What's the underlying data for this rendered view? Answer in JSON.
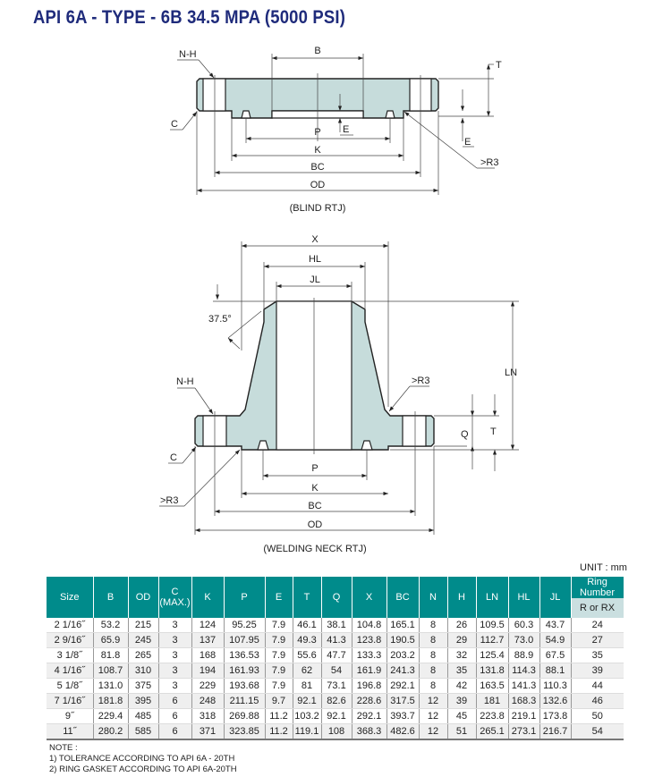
{
  "title": "API 6A - TYPE - 6B 34.5 MPA (5000 PSI)",
  "blind": {
    "caption": "(BLIND RTJ)",
    "labels": {
      "B": "B",
      "NH": "N-H",
      "C": "C",
      "T": "T",
      "E1": "E",
      "E2": "E",
      "P": "P",
      "K": "K",
      "BC": "BC",
      "OD": "OD",
      "R3": ">R3"
    }
  },
  "welding": {
    "caption": "(WELDING NECK RTJ)",
    "labels": {
      "X": "X",
      "HL": "HL",
      "JL": "JL",
      "angle": "37.5°",
      "NH": "N-H",
      "R3a": ">R3",
      "R3b": ">R3",
      "C": "C",
      "LN": "LN",
      "Q": "Q",
      "T": "T",
      "P": "P",
      "K": "K",
      "BC": "BC",
      "OD": "OD"
    }
  },
  "unit": "UNIT : mm",
  "table": {
    "headers": [
      "Size",
      "B",
      "OD",
      "C",
      "K",
      "P",
      "E",
      "T",
      "Q",
      "X",
      "BC",
      "N",
      "H",
      "LN",
      "HL",
      "JL"
    ],
    "c_sub": "(MAX.)",
    "ring_header": "Ring Number",
    "ring_sub": "R or RX",
    "rows": [
      [
        "2 1/16˝",
        "53.2",
        "215",
        "3",
        "124",
        "95.25",
        "7.9",
        "46.1",
        "38.1",
        "104.8",
        "165.1",
        "8",
        "26",
        "109.5",
        "60.3",
        "43.7",
        "24"
      ],
      [
        "2 9/16˝",
        "65.9",
        "245",
        "3",
        "137",
        "107.95",
        "7.9",
        "49.3",
        "41.3",
        "123.8",
        "190.5",
        "8",
        "29",
        "112.7",
        "73.0",
        "54.9",
        "27"
      ],
      [
        "3 1/8˝",
        "81.8",
        "265",
        "3",
        "168",
        "136.53",
        "7.9",
        "55.6",
        "47.7",
        "133.3",
        "203.2",
        "8",
        "32",
        "125.4",
        "88.9",
        "67.5",
        "35"
      ],
      [
        "4 1/16˝",
        "108.7",
        "310",
        "3",
        "194",
        "161.93",
        "7.9",
        "62",
        "54",
        "161.9",
        "241.3",
        "8",
        "35",
        "131.8",
        "114.3",
        "88.1",
        "39"
      ],
      [
        "5 1/8˝",
        "131.0",
        "375",
        "3",
        "229",
        "193.68",
        "7.9",
        "81",
        "73.1",
        "196.8",
        "292.1",
        "8",
        "42",
        "163.5",
        "141.3",
        "110.3",
        "44"
      ],
      [
        "7 1/16˝",
        "181.8",
        "395",
        "6",
        "248",
        "211.15",
        "9.7",
        "92.1",
        "82.6",
        "228.6",
        "317.5",
        "12",
        "39",
        "181",
        "168.3",
        "132.6",
        "46"
      ],
      [
        "9˝",
        "229.4",
        "485",
        "6",
        "318",
        "269.88",
        "11.2",
        "103.2",
        "92.1",
        "292.1",
        "393.7",
        "12",
        "45",
        "223.8",
        "219.1",
        "173.8",
        "50"
      ],
      [
        "11˝",
        "280.2",
        "585",
        "6",
        "371",
        "323.85",
        "11.2",
        "119.1",
        "108",
        "368.3",
        "482.6",
        "12",
        "51",
        "265.1",
        "273.1",
        "216.7",
        "54"
      ]
    ]
  },
  "notes": [
    "NOTE :",
    "1) TOLERANCE ACCORDING TO API 6A - 20TH",
    "2) RING GASKET ACCORDING TO API 6A-20TH"
  ],
  "colors": {
    "title": "#1f2b7b",
    "header": "#008b8b",
    "ring_sub": "#cadfe0",
    "body_fill": "#c6dcdb"
  }
}
